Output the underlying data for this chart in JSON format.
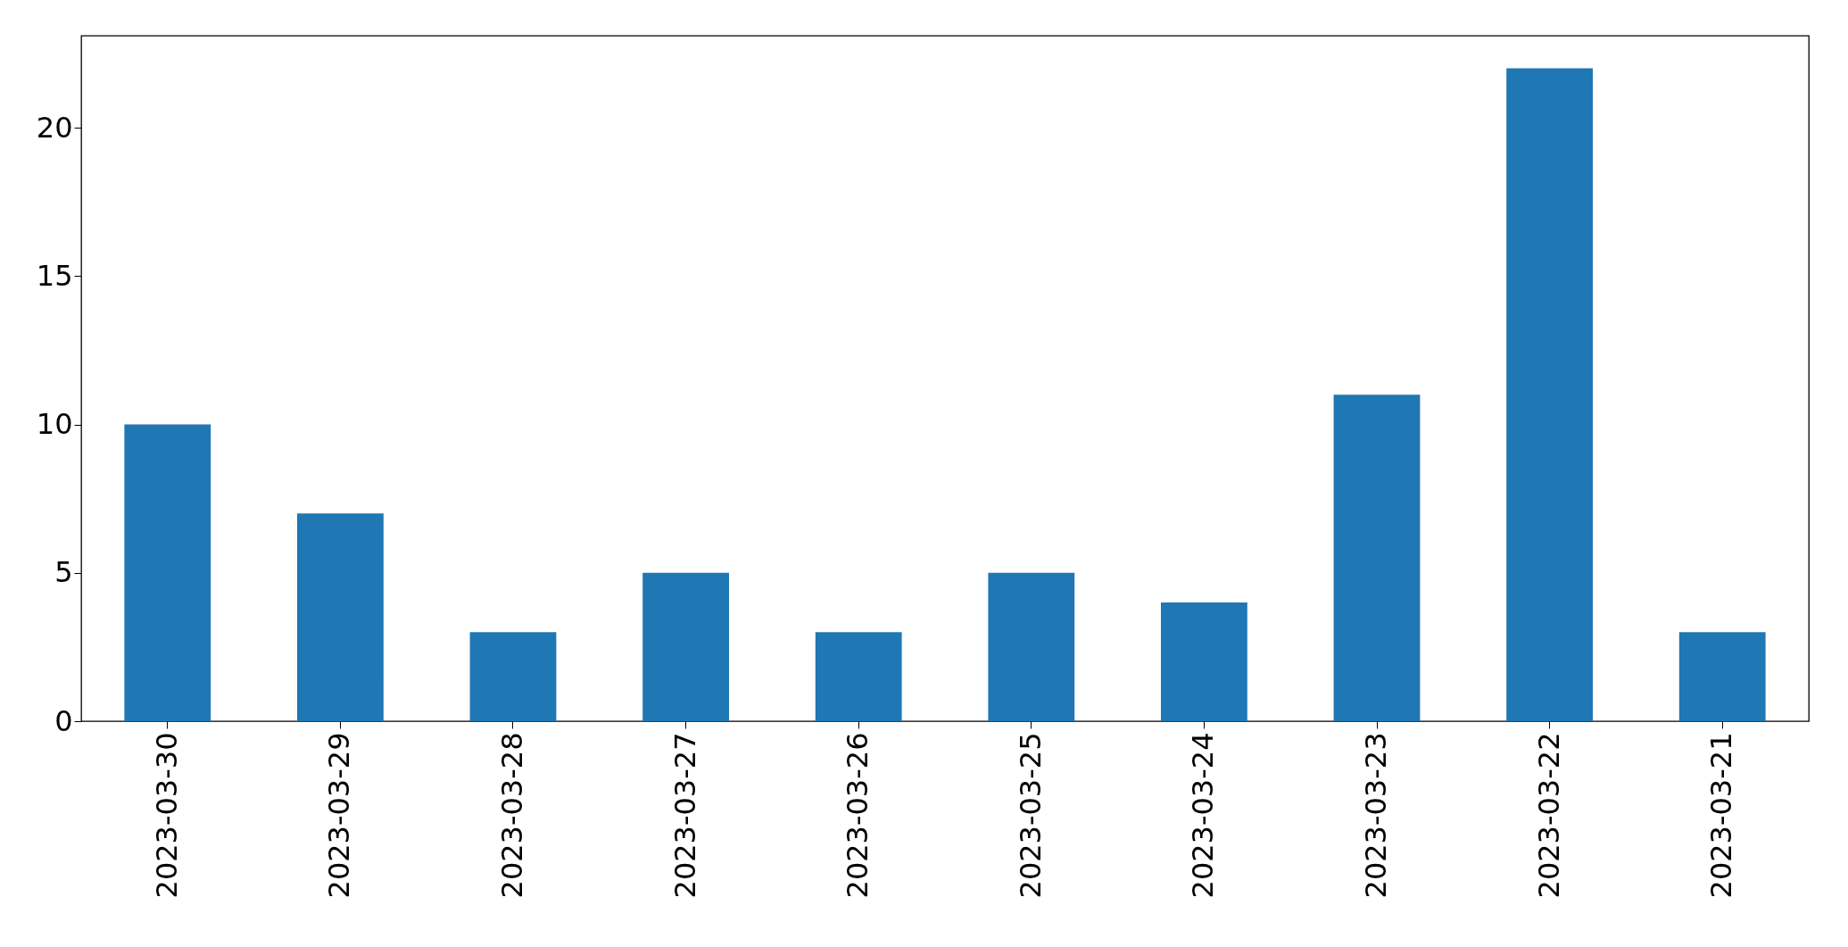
{
  "chart_data": {
    "type": "bar",
    "categories": [
      "2023-03-30",
      "2023-03-29",
      "2023-03-28",
      "2023-03-27",
      "2023-03-26",
      "2023-03-25",
      "2023-03-24",
      "2023-03-23",
      "2023-03-22",
      "2023-03-21"
    ],
    "values": [
      10,
      7,
      3,
      5,
      3,
      5,
      4,
      11,
      22,
      3
    ],
    "color": "#1f77b4",
    "ylim": [
      0,
      23.1
    ],
    "yticks": [
      0,
      5,
      10,
      15,
      20
    ],
    "grid": false
  }
}
